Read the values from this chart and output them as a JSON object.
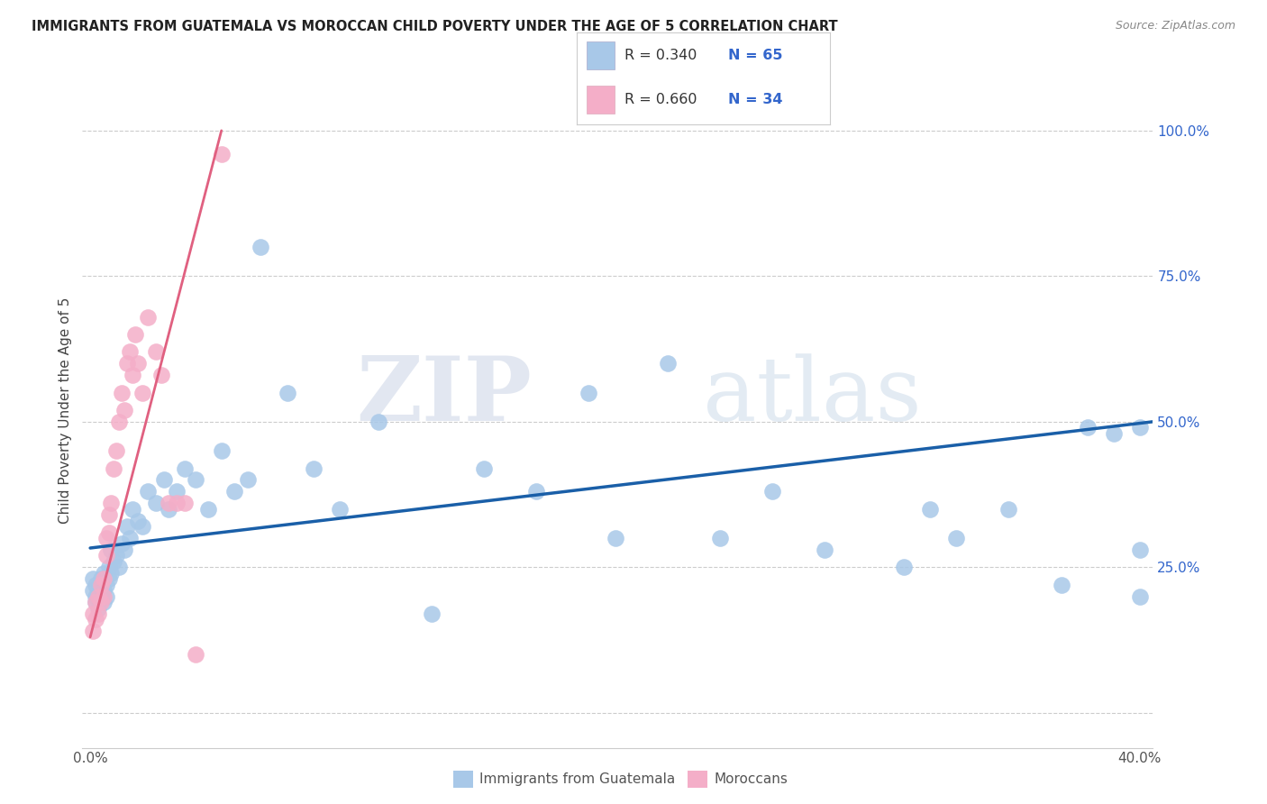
{
  "title": "IMMIGRANTS FROM GUATEMALA VS MOROCCAN CHILD POVERTY UNDER THE AGE OF 5 CORRELATION CHART",
  "source": "Source: ZipAtlas.com",
  "ylabel": "Child Poverty Under the Age of 5",
  "xlim": [
    -0.003,
    0.405
  ],
  "ylim": [
    -0.06,
    1.1
  ],
  "xticks": [
    0.0,
    0.1,
    0.2,
    0.3,
    0.4
  ],
  "xlabel_labels": [
    "0.0%",
    "",
    "",
    "",
    "40.0%"
  ],
  "yticks": [
    0.0,
    0.25,
    0.5,
    0.75,
    1.0
  ],
  "ytick_labels": [
    "",
    "25.0%",
    "50.0%",
    "75.0%",
    "100.0%"
  ],
  "blue_color": "#a8c8e8",
  "pink_color": "#f4aec8",
  "blue_line_color": "#1a5fa8",
  "pink_line_color": "#e06080",
  "watermark_zip": "ZIP",
  "watermark_atlas": "atlas",
  "blue_x": [
    0.001,
    0.001,
    0.002,
    0.002,
    0.002,
    0.003,
    0.003,
    0.003,
    0.004,
    0.004,
    0.004,
    0.005,
    0.005,
    0.005,
    0.006,
    0.006,
    0.007,
    0.007,
    0.008,
    0.008,
    0.009,
    0.01,
    0.011,
    0.012,
    0.013,
    0.014,
    0.015,
    0.016,
    0.018,
    0.02,
    0.022,
    0.025,
    0.028,
    0.03,
    0.033,
    0.036,
    0.04,
    0.045,
    0.05,
    0.055,
    0.06,
    0.065,
    0.075,
    0.085,
    0.095,
    0.11,
    0.13,
    0.15,
    0.17,
    0.19,
    0.2,
    0.22,
    0.24,
    0.26,
    0.28,
    0.31,
    0.32,
    0.33,
    0.35,
    0.37,
    0.38,
    0.39,
    0.4,
    0.4,
    0.4
  ],
  "blue_y": [
    0.21,
    0.23,
    0.2,
    0.22,
    0.19,
    0.21,
    0.2,
    0.18,
    0.22,
    0.2,
    0.23,
    0.21,
    0.19,
    0.24,
    0.22,
    0.2,
    0.25,
    0.23,
    0.24,
    0.28,
    0.26,
    0.27,
    0.25,
    0.29,
    0.28,
    0.32,
    0.3,
    0.35,
    0.33,
    0.32,
    0.38,
    0.36,
    0.4,
    0.35,
    0.38,
    0.42,
    0.4,
    0.35,
    0.45,
    0.38,
    0.4,
    0.8,
    0.55,
    0.42,
    0.35,
    0.5,
    0.17,
    0.42,
    0.38,
    0.55,
    0.3,
    0.6,
    0.3,
    0.38,
    0.28,
    0.25,
    0.35,
    0.3,
    0.35,
    0.22,
    0.49,
    0.48,
    0.49,
    0.28,
    0.2
  ],
  "pink_x": [
    0.001,
    0.001,
    0.002,
    0.002,
    0.003,
    0.003,
    0.004,
    0.004,
    0.005,
    0.005,
    0.006,
    0.006,
    0.007,
    0.007,
    0.008,
    0.009,
    0.01,
    0.011,
    0.012,
    0.013,
    0.014,
    0.015,
    0.016,
    0.017,
    0.018,
    0.02,
    0.022,
    0.025,
    0.027,
    0.03,
    0.033,
    0.036,
    0.04,
    0.05
  ],
  "pink_y": [
    0.17,
    0.14,
    0.19,
    0.16,
    0.2,
    0.17,
    0.22,
    0.19,
    0.23,
    0.2,
    0.3,
    0.27,
    0.34,
    0.31,
    0.36,
    0.42,
    0.45,
    0.5,
    0.55,
    0.52,
    0.6,
    0.62,
    0.58,
    0.65,
    0.6,
    0.55,
    0.68,
    0.62,
    0.58,
    0.36,
    0.36,
    0.36,
    0.1,
    0.96
  ],
  "blue_trend_x": [
    0.0,
    0.405
  ],
  "blue_trend_y": [
    0.283,
    0.5
  ],
  "pink_trend_x": [
    0.0,
    0.05
  ],
  "pink_trend_y": [
    0.13,
    1.0
  ]
}
